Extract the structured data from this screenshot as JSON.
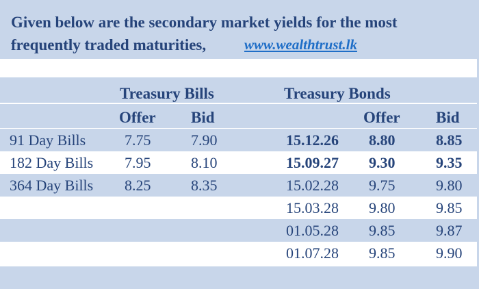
{
  "header": {
    "line1": "Given below are the secondary market yields for the most",
    "line2": "frequently traded maturities,",
    "link": "www.wealthtrust.lk"
  },
  "groups": {
    "bills": "Treasury Bills",
    "bonds": "Treasury Bonds"
  },
  "columns": {
    "bills_offer": "Offer",
    "bills_bid": "Bid",
    "bonds_offer": "Offer",
    "bonds_bid": "Bid"
  },
  "rows": [
    {
      "bill": "91 Day Bills",
      "bill_offer": "7.75",
      "bill_bid": "7.90",
      "bond": "15.12.26",
      "bond_offer": "8.80",
      "bond_bid": "8.85",
      "bold": true
    },
    {
      "bill": "182 Day Bills",
      "bill_offer": "7.95",
      "bill_bid": "8.10",
      "bond": "15.09.27",
      "bond_offer": "9.30",
      "bond_bid": "9.35",
      "bold": true
    },
    {
      "bill": "364 Day Bills",
      "bill_offer": "8.25",
      "bill_bid": "8.35",
      "bond": "15.02.28",
      "bond_offer": "9.75",
      "bond_bid": "9.80",
      "bold": false
    },
    {
      "bill": "",
      "bill_offer": "",
      "bill_bid": "",
      "bond": "15.03.28",
      "bond_offer": "9.80",
      "bond_bid": "9.85",
      "bold": false
    },
    {
      "bill": "",
      "bill_offer": "",
      "bill_bid": "",
      "bond": "01.05.28",
      "bond_offer": "9.85",
      "bond_bid": "9.87",
      "bold": false
    },
    {
      "bill": "",
      "bill_offer": "",
      "bill_bid": "",
      "bond": "01.07.28",
      "bond_offer": "9.85",
      "bond_bid": "9.90",
      "bold": false
    }
  ]
}
